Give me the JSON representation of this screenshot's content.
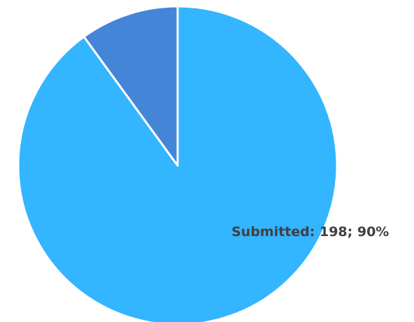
{
  "chart_data": {
    "type": "pie",
    "slices": [
      {
        "label": "Submitted",
        "value": 198,
        "percent": 90,
        "color": "#33b5ff",
        "display_label": "Submitted: 198; 90%"
      },
      {
        "label": "",
        "value": 22,
        "percent": 10,
        "color": "#4485d7",
        "display_label": ""
      }
    ],
    "start_angle_deg": 0,
    "direction": "clockwise",
    "slice_border_color": "#ffffff"
  }
}
